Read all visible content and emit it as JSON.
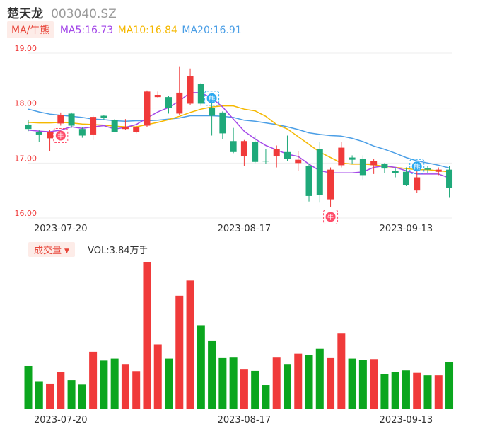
{
  "header": {
    "name": "楚天龙",
    "code": "003040.SZ"
  },
  "ma_bar": {
    "button": "MA/牛熊",
    "items": [
      {
        "label": "MA5:16.73",
        "color": "#a347e8"
      },
      {
        "label": "MA10:16.84",
        "color": "#f5b800"
      },
      {
        "label": "MA20:16.91",
        "color": "#4a9ee6"
      }
    ]
  },
  "volume_bar": {
    "button": "成交量",
    "caret": "▼",
    "label": "VOL:3.84万手"
  },
  "colors": {
    "up": "#f03a3a",
    "down": "#1fa97a",
    "vol_down": "#0ba61e",
    "grid": "#eeeeee",
    "signal_bull": "#ff4d6a",
    "signal_bear": "#2aa8f0"
  },
  "chart_data": [
    {
      "type": "candlestick",
      "ylim": [
        16.0,
        19.0
      ],
      "yticks": [
        "19.00",
        "18.00",
        "17.00",
        "16.00"
      ],
      "xticks": [
        {
          "index": 3,
          "label": "2023-07-20"
        },
        {
          "index": 20,
          "label": "2023-08-17"
        },
        {
          "index": 35,
          "label": "2023-09-13"
        }
      ],
      "candles": [
        {
          "o": 17.7,
          "c": 17.62,
          "h": 17.78,
          "l": 17.58
        },
        {
          "o": 17.56,
          "c": 17.52,
          "h": 17.6,
          "l": 17.38
        },
        {
          "o": 17.45,
          "c": 17.56,
          "h": 17.6,
          "l": 17.22
        },
        {
          "o": 17.72,
          "c": 17.88,
          "h": 17.92,
          "l": 17.68
        },
        {
          "o": 17.9,
          "c": 17.68,
          "h": 17.92,
          "l": 17.64
        },
        {
          "o": 17.62,
          "c": 17.5,
          "h": 17.66,
          "l": 17.46
        },
        {
          "o": 17.52,
          "c": 17.84,
          "h": 17.86,
          "l": 17.42
        },
        {
          "o": 17.86,
          "c": 17.82,
          "h": 17.88,
          "l": 17.78
        },
        {
          "o": 17.78,
          "c": 17.56,
          "h": 17.8,
          "l": 17.56
        },
        {
          "o": 17.62,
          "c": 17.66,
          "h": 17.8,
          "l": 17.6
        },
        {
          "o": 17.56,
          "c": 17.66,
          "h": 17.68,
          "l": 17.54
        },
        {
          "o": 17.68,
          "c": 18.3,
          "h": 18.32,
          "l": 17.66
        },
        {
          "o": 18.2,
          "c": 18.24,
          "h": 18.3,
          "l": 18.18
        },
        {
          "o": 18.2,
          "c": 18.0,
          "h": 18.22,
          "l": 17.9
        },
        {
          "o": 17.9,
          "c": 18.28,
          "h": 18.76,
          "l": 17.88
        },
        {
          "o": 18.08,
          "c": 18.58,
          "h": 18.72,
          "l": 18.06
        },
        {
          "o": 18.44,
          "c": 18.08,
          "h": 18.46,
          "l": 18.04
        },
        {
          "o": 18.0,
          "c": 17.86,
          "h": 18.1,
          "l": 17.5
        },
        {
          "o": 17.92,
          "c": 17.54,
          "h": 17.94,
          "l": 17.44
        },
        {
          "o": 17.4,
          "c": 17.2,
          "h": 17.64,
          "l": 17.18
        },
        {
          "o": 17.12,
          "c": 17.4,
          "h": 17.42,
          "l": 16.94
        },
        {
          "o": 17.38,
          "c": 17.02,
          "h": 17.5,
          "l": 17.0
        },
        {
          "o": 17.04,
          "c": 17.03,
          "h": 17.26,
          "l": 16.98
        },
        {
          "o": 17.12,
          "c": 17.26,
          "h": 17.32,
          "l": 16.92
        },
        {
          "o": 17.2,
          "c": 17.08,
          "h": 17.5,
          "l": 17.04
        },
        {
          "o": 17.0,
          "c": 17.06,
          "h": 17.22,
          "l": 16.86
        },
        {
          "o": 16.94,
          "c": 16.4,
          "h": 16.98,
          "l": 16.3
        },
        {
          "o": 17.26,
          "c": 16.42,
          "h": 17.38,
          "l": 16.28
        },
        {
          "o": 16.34,
          "c": 16.88,
          "h": 16.92,
          "l": 16.2
        },
        {
          "o": 16.96,
          "c": 17.28,
          "h": 17.38,
          "l": 16.92
        },
        {
          "o": 17.1,
          "c": 17.06,
          "h": 17.14,
          "l": 16.98
        },
        {
          "o": 17.08,
          "c": 16.78,
          "h": 17.14,
          "l": 16.7
        },
        {
          "o": 16.96,
          "c": 17.04,
          "h": 17.08,
          "l": 16.8
        },
        {
          "o": 16.98,
          "c": 16.9,
          "h": 17.0,
          "l": 16.82
        },
        {
          "o": 16.86,
          "c": 16.82,
          "h": 16.9,
          "l": 16.74
        },
        {
          "o": 16.84,
          "c": 16.6,
          "h": 16.92,
          "l": 16.58
        },
        {
          "o": 16.5,
          "c": 16.74,
          "h": 16.86,
          "l": 16.46
        },
        {
          "o": 16.9,
          "c": 16.88,
          "h": 16.94,
          "l": 16.82
        },
        {
          "o": 16.84,
          "c": 16.88,
          "h": 16.92,
          "l": 16.78
        },
        {
          "o": 16.88,
          "c": 16.55,
          "h": 16.94,
          "l": 16.38
        }
      ],
      "ma5": [
        17.6,
        17.58,
        17.57,
        17.6,
        17.66,
        17.63,
        17.66,
        17.68,
        17.62,
        17.65,
        17.7,
        17.82,
        17.93,
        18.01,
        18.13,
        18.28,
        18.28,
        18.18,
        18.02,
        17.8,
        17.58,
        17.44,
        17.32,
        17.24,
        17.16,
        17.12,
        16.98,
        16.86,
        16.82,
        16.82,
        16.82,
        16.84,
        16.92,
        16.95,
        16.92,
        16.86,
        16.8,
        16.8,
        16.8,
        16.73
      ],
      "ma10": [
        17.74,
        17.73,
        17.73,
        17.74,
        17.73,
        17.71,
        17.7,
        17.69,
        17.67,
        17.66,
        17.66,
        17.7,
        17.74,
        17.79,
        17.85,
        17.92,
        17.98,
        18.02,
        18.04,
        18.04,
        17.98,
        17.95,
        17.85,
        17.7,
        17.62,
        17.48,
        17.34,
        17.2,
        17.1,
        17.0,
        16.98,
        16.98,
        16.97,
        16.94,
        16.92,
        16.9,
        16.88,
        16.88,
        16.86,
        16.84
      ],
      "ma20": [
        17.98,
        17.93,
        17.89,
        17.87,
        17.85,
        17.83,
        17.8,
        17.79,
        17.77,
        17.76,
        17.77,
        17.77,
        17.78,
        17.8,
        17.82,
        17.86,
        17.86,
        17.86,
        17.85,
        17.83,
        17.78,
        17.76,
        17.73,
        17.7,
        17.66,
        17.61,
        17.55,
        17.52,
        17.5,
        17.49,
        17.45,
        17.39,
        17.31,
        17.25,
        17.18,
        17.1,
        17.04,
        17.0,
        16.96,
        16.91
      ],
      "signals": [
        {
          "index": 3,
          "type": "bull",
          "text": "牛"
        },
        {
          "index": 17,
          "type": "bear",
          "text": "熊"
        },
        {
          "index": 28,
          "type": "bull",
          "text": "牛"
        },
        {
          "index": 36,
          "type": "bear",
          "text": "熊"
        }
      ]
    },
    {
      "type": "bar",
      "title": "成交量",
      "xticks": [
        {
          "index": 3,
          "label": "2023-07-20"
        },
        {
          "index": 20,
          "label": "2023-08-17"
        },
        {
          "index": 35,
          "label": "2023-09-13"
        }
      ],
      "ylim": [
        0,
        6.0
      ],
      "values": [
        1.76,
        1.14,
        1.04,
        1.52,
        1.18,
        1.0,
        2.34,
        1.98,
        2.06,
        1.84,
        1.55,
        6.0,
        2.64,
        2.06,
        4.62,
        5.24,
        3.42,
        2.8,
        2.08,
        2.1,
        1.64,
        1.56,
        0.98,
        2.1,
        1.84,
        2.26,
        2.22,
        2.46,
        2.08,
        3.08,
        2.06,
        2.0,
        2.04,
        1.44,
        1.52,
        1.58,
        1.48,
        1.38,
        1.38,
        1.92
      ]
    }
  ]
}
